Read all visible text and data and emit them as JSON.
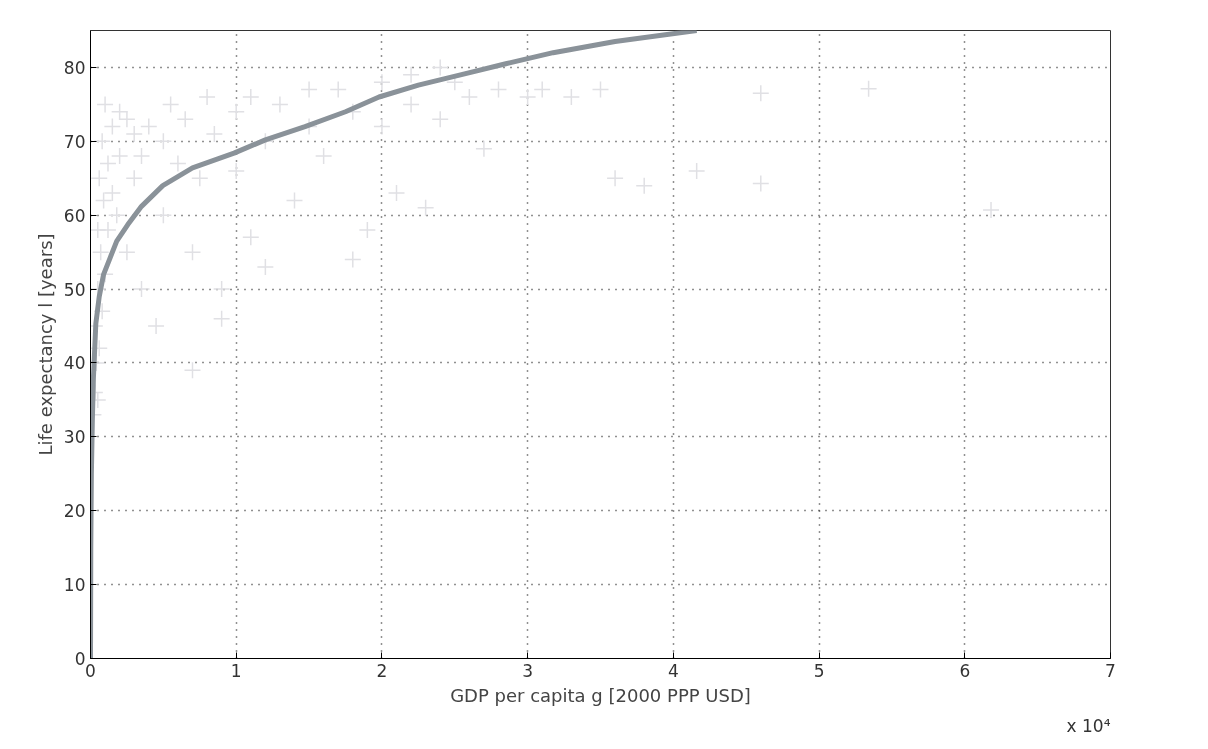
{
  "chart_data": {
    "type": "scatter",
    "xlabel": "GDP per capita g [2000 PPP USD]",
    "ylabel": "Life expectancy l [years]",
    "annotations": [
      "x 10⁴"
    ],
    "xlim": [
      0,
      7
    ],
    "ylim": [
      0,
      85
    ],
    "xticks": [
      0,
      1,
      2,
      3,
      4,
      5,
      6,
      7
    ],
    "yticks": [
      0,
      10,
      20,
      30,
      40,
      50,
      60,
      70,
      80
    ],
    "grid": true,
    "marker": "cross",
    "series": [
      {
        "type": "scatter",
        "color": "#e0e0e4",
        "x": [
          0.02,
          0.03,
          0.05,
          0.04,
          0.06,
          0.03,
          0.08,
          0.05,
          0.1,
          0.07,
          0.12,
          0.05,
          0.09,
          0.15,
          0.06,
          0.12,
          0.2,
          0.08,
          0.15,
          0.25,
          0.1,
          0.2,
          0.3,
          0.18,
          0.25,
          0.3,
          0.35,
          0.35,
          0.4,
          0.45,
          0.5,
          0.5,
          0.55,
          0.6,
          0.65,
          0.7,
          0.7,
          0.75,
          0.8,
          0.85,
          0.9,
          0.9,
          1.0,
          1.0,
          1.1,
          1.1,
          1.2,
          1.2,
          1.3,
          1.4,
          1.5,
          1.5,
          1.6,
          1.7,
          1.8,
          1.8,
          1.9,
          2.0,
          2.0,
          2.1,
          2.2,
          2.2,
          2.3,
          2.4,
          2.4,
          2.5,
          2.6,
          2.7,
          2.8,
          3.0,
          3.1,
          3.3,
          3.5,
          3.6,
          3.8,
          4.16,
          4.6,
          4.6,
          5.34,
          6.18
        ],
        "values": [
          33,
          36,
          35,
          40,
          42,
          45,
          47,
          50,
          52,
          55,
          58,
          58,
          62,
          63,
          65,
          67,
          68,
          70,
          72,
          73,
          75,
          74,
          71,
          60,
          55,
          65,
          50,
          68,
          72,
          45,
          70,
          60,
          75,
          67,
          73,
          55,
          39,
          65,
          76,
          71,
          50,
          46,
          74,
          66,
          76,
          57,
          70,
          53,
          75,
          62,
          77,
          72,
          68,
          77,
          54,
          74,
          58,
          78,
          72,
          63,
          79,
          75,
          61,
          80,
          73,
          78,
          76,
          69,
          77,
          76,
          77,
          76,
          77,
          65,
          64,
          66,
          64.3,
          76.5,
          77.1,
          60.7
        ]
      },
      {
        "type": "line",
        "color": "#8a9299",
        "line_style": "solid",
        "marker": "none",
        "x": [
          0,
          0.002,
          0.006,
          0.0124,
          0.02,
          0.0365,
          0.06,
          0.09,
          0.134,
          0.18,
          0.255,
          0.35,
          0.496,
          0.7,
          0.985,
          1.2,
          1.472,
          1.75,
          1.98,
          2.25,
          2.56,
          2.85,
          3.175,
          3.6,
          4.16
        ],
        "values": [
          0,
          15,
          25,
          32,
          38,
          45.3,
          49,
          52,
          54.2,
          56.5,
          58.7,
          61.2,
          64,
          66.4,
          68.4,
          70.2,
          72,
          74,
          76,
          77.6,
          79.1,
          80.5,
          82,
          83.5,
          85
        ]
      }
    ]
  }
}
